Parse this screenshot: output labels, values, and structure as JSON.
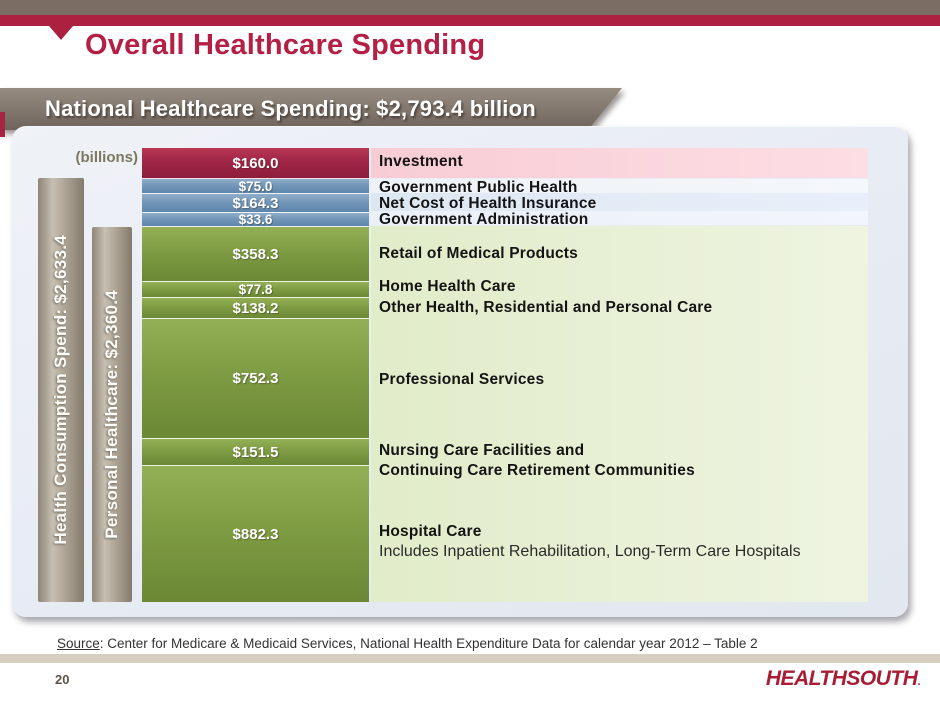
{
  "header": {
    "title": "Overall Healthcare Spending"
  },
  "banner": {
    "text": "National Healthcare Spending: $2,793.4 billion"
  },
  "chart": {
    "units_label": "(billions)"
  },
  "chart_data": {
    "type": "bar",
    "subtype": "single-column-stacked",
    "title": "National Healthcare Spending: $2,793.4 billion",
    "units": "billions of dollars",
    "total": 2793.4,
    "legend_position": "right-of-bar",
    "grid": false,
    "segments": [
      {
        "label": "Investment",
        "value": 160.0,
        "display_value": "$160.0",
        "group": "investment",
        "color": "#9e2845",
        "label_bg": "#f8ccd5"
      },
      {
        "label": "Government Public Health",
        "value": 75.0,
        "display_value": "$75.0",
        "group": "government",
        "color": "#7095b8",
        "label_bg": "#eef3fa"
      },
      {
        "label": "Net Cost of Health Insurance",
        "value": 164.3,
        "display_value": "$164.3",
        "group": "government",
        "color": "#7095b8",
        "label_bg": "#dde7f2"
      },
      {
        "label": "Government Administration",
        "value": 33.6,
        "display_value": "$33.6",
        "group": "government",
        "color": "#7095b8",
        "label_bg": "#ebf1f8"
      },
      {
        "label": "Retail of Medical Products",
        "value": 358.3,
        "display_value": "$358.3",
        "group": "personal-healthcare",
        "color": "#7c9a41",
        "label_bg": "#e1ecc9"
      },
      {
        "label": "Home Health Care",
        "value": 77.8,
        "display_value": "$77.8",
        "group": "personal-healthcare",
        "color": "#7c9a41",
        "label_bg": "#e1ecc9"
      },
      {
        "label": "Other Health, Residential and Personal Care",
        "value": 138.2,
        "display_value": "$138.2",
        "group": "personal-healthcare",
        "color": "#7c9a41",
        "label_bg": "#e1ecc9"
      },
      {
        "label": "Professional Services",
        "value": 752.3,
        "display_value": "$752.3",
        "group": "personal-healthcare",
        "color": "#7c9a41",
        "label_bg": "#e1ecc9"
      },
      {
        "label": "Nursing Care Facilities and\nContinuing Care Retirement Communities",
        "value": 151.5,
        "display_value": "$151.5",
        "group": "personal-healthcare",
        "color": "#7c9a41",
        "label_bg": "#e1ecc9"
      },
      {
        "label": "Hospital Care",
        "sublabel": "Includes Inpatient Rehabilitation, Long-Term Care Hospitals",
        "value": 882.3,
        "display_value": "$882.3",
        "group": "personal-healthcare",
        "color": "#7c9a41",
        "label_bg": "#e1ecc9"
      }
    ],
    "aggregate_bars": [
      {
        "label": "Health Consumption Spend: $2,633.4",
        "value": 2633.4
      },
      {
        "label": "Personal Healthcare: $2,360.4",
        "value": 2360.4
      }
    ]
  },
  "footer": {
    "source_label": "Source",
    "source_rest": ": Center for Medicare & Medicaid Services, National Health Expenditure Data for calendar year 2012 – Table 2",
    "page_number": "20",
    "logo_text": "HEALTHSOUTH",
    "logo_mark": "."
  },
  "colors": {
    "accent_crimson": "#ac2140",
    "header_brown": "#7b6d64",
    "banner_gray": "#857a70",
    "panel_bg": "#e8ecf4",
    "investment_red": "#9e2845",
    "government_blue": "#7095b8",
    "personal_green": "#7c9a41",
    "divider_beige": "#d6cfc0"
  }
}
